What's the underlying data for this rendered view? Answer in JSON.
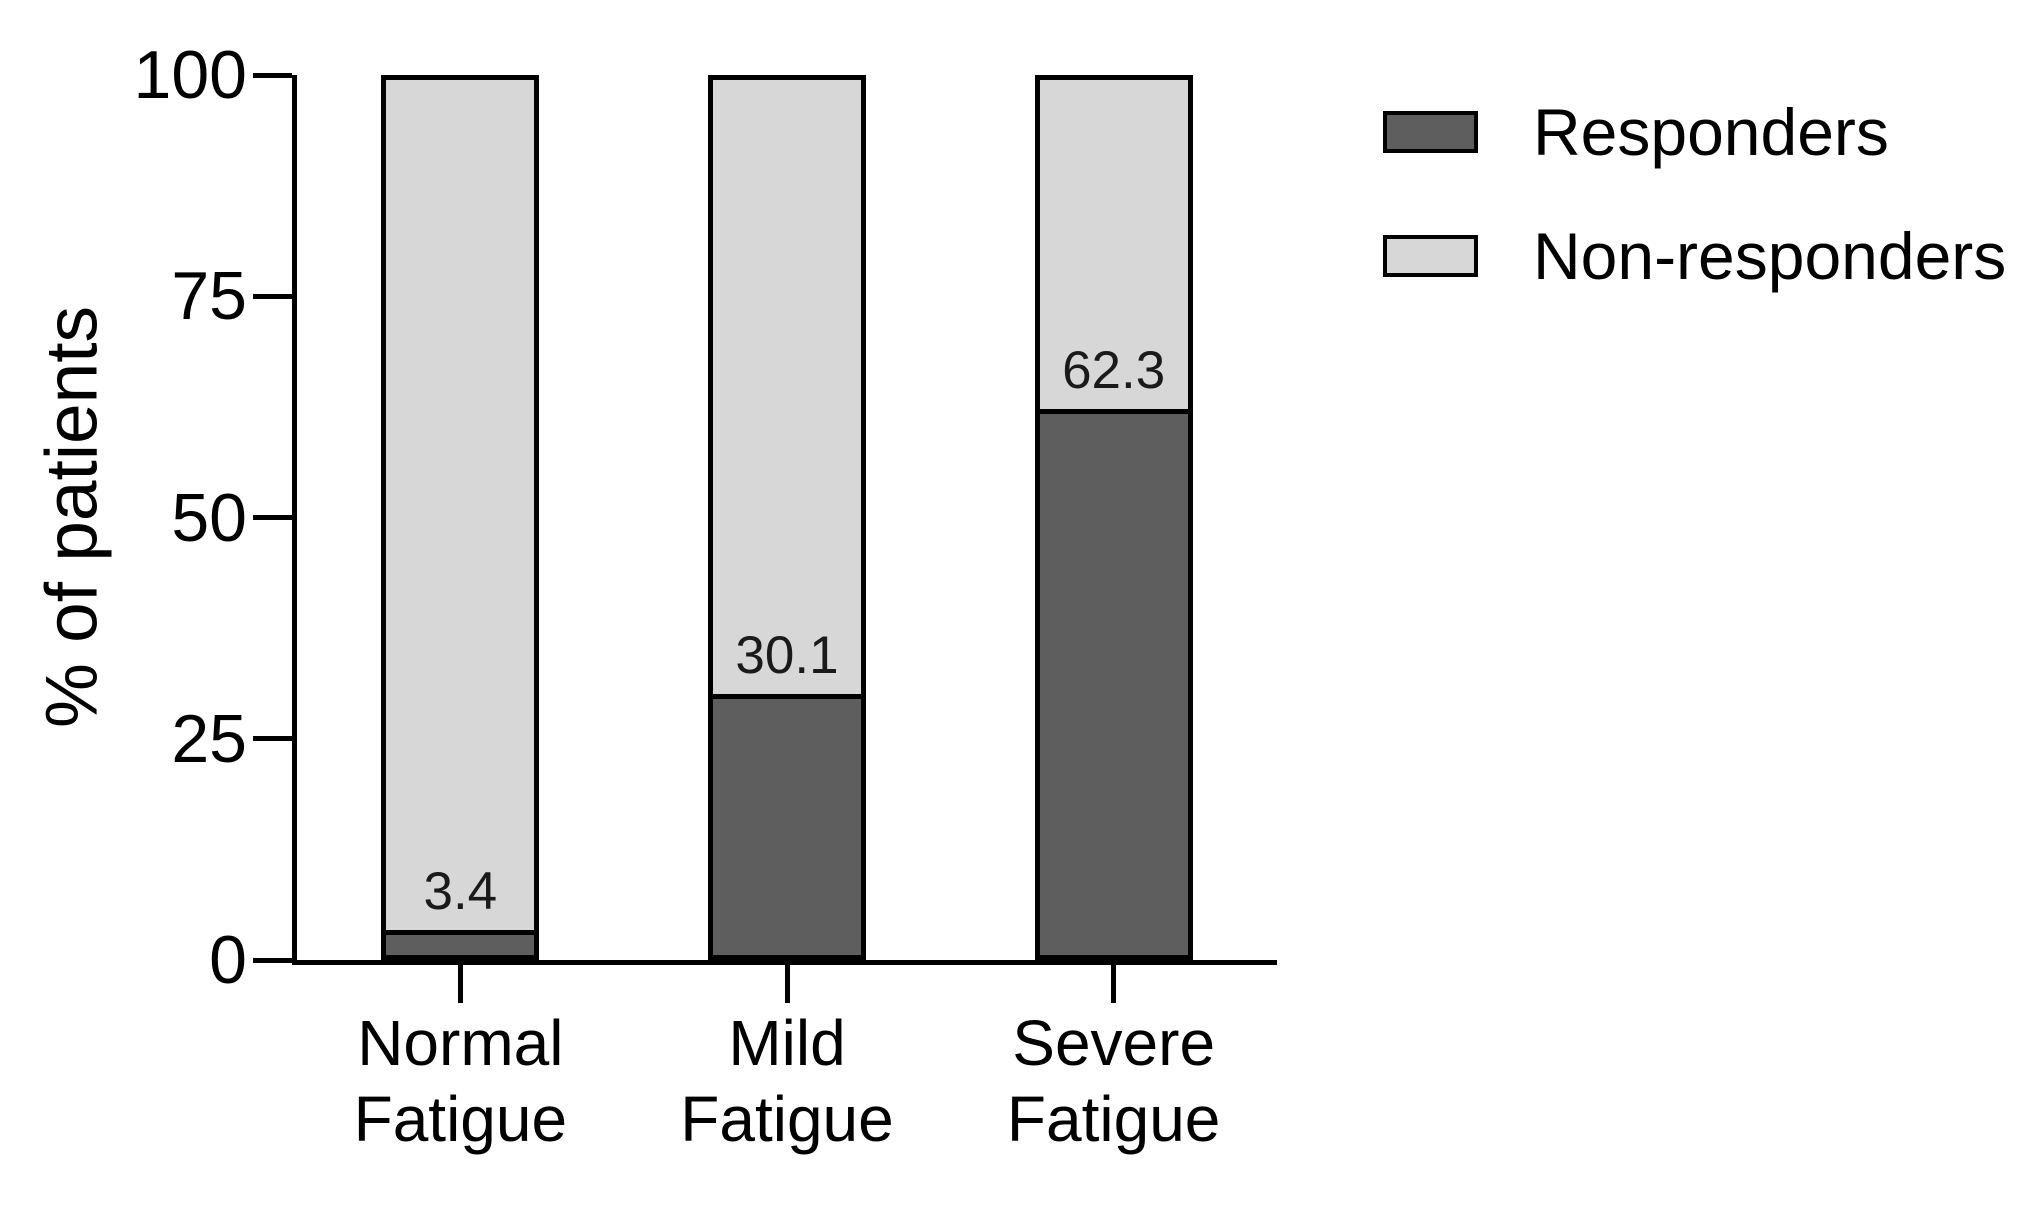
{
  "chart_data": {
    "type": "bar",
    "variant": "stacked-percent",
    "title": "",
    "xlabel": "",
    "ylabel": "% of patients",
    "ylim": [
      0,
      100
    ],
    "yticks": [
      0,
      25,
      50,
      75,
      100
    ],
    "categories": [
      [
        "Normal",
        "Fatigue"
      ],
      [
        "Mild",
        "Fatigue"
      ],
      [
        "Severe",
        "Fatigue"
      ]
    ],
    "series": [
      {
        "name": "Responders",
        "color": "#5e5e5e",
        "values": [
          3.4,
          30.1,
          62.3
        ]
      },
      {
        "name": "Non-responders",
        "color": "#d7d7d7",
        "values": [
          96.6,
          69.9,
          37.7
        ]
      }
    ],
    "data_labels": {
      "series": "Responders",
      "values": [
        "3.4",
        "30.1",
        "62.3"
      ]
    },
    "legend": {
      "position": "top-right"
    },
    "axis_color": "#000000",
    "background_color": "#ffffff",
    "grid": false
  }
}
